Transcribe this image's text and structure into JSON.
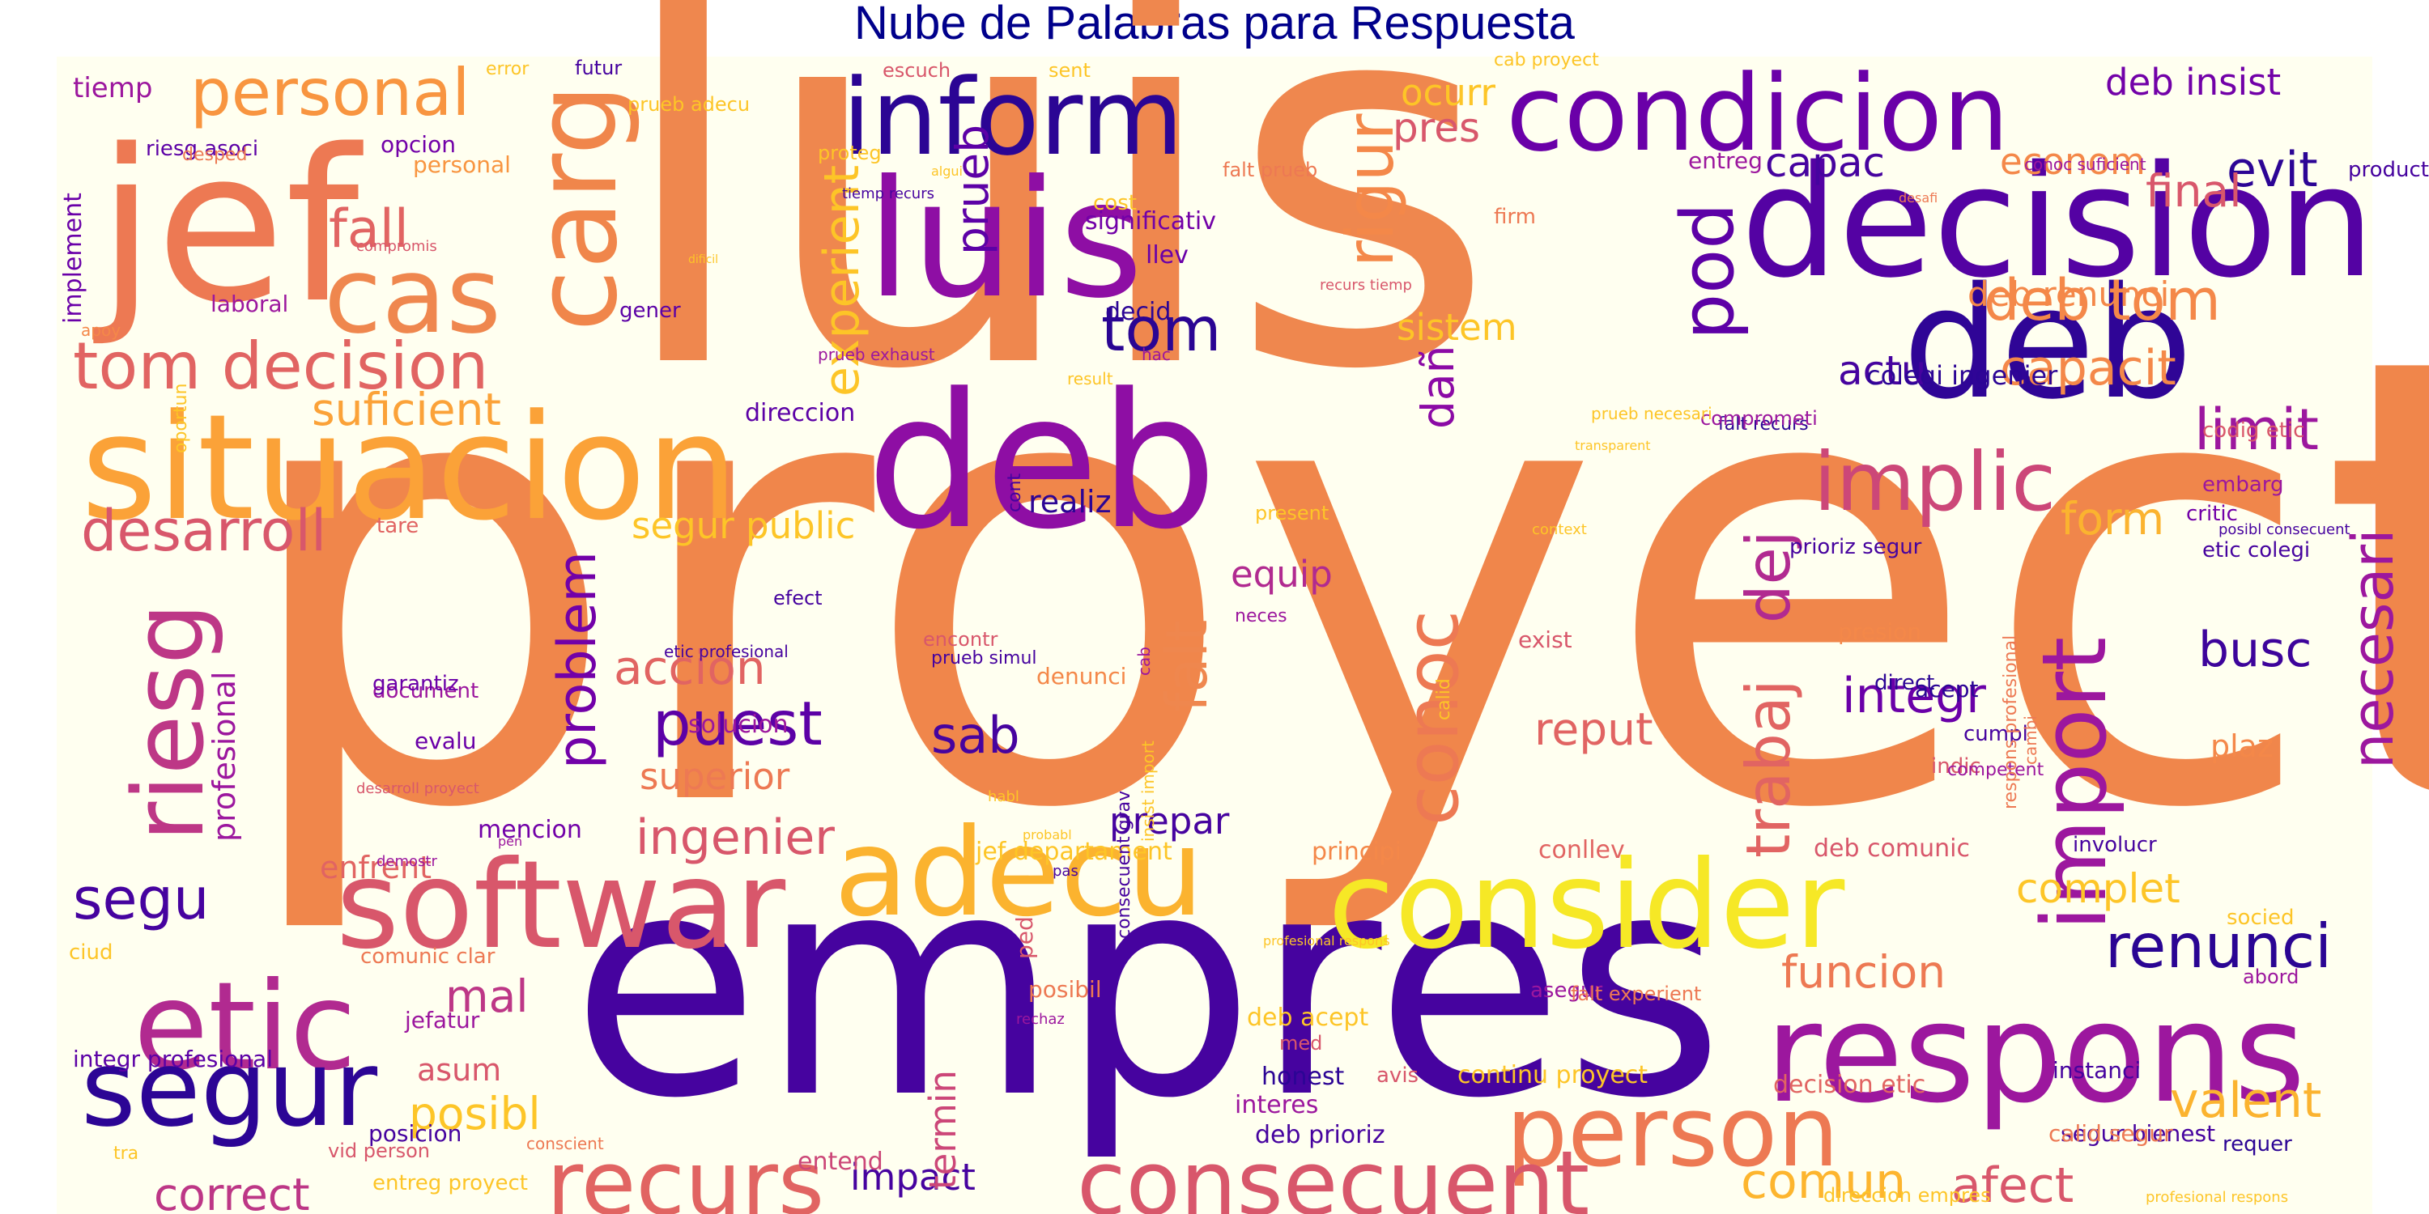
{
  "title": "Nube de Palabras para Respuesta",
  "background": "#fffff0",
  "palette": [
    "#0d0887",
    "#46039f",
    "#7201a8",
    "#9c179e",
    "#bd3786",
    "#d8576b",
    "#ed7953",
    "#fb9f3a",
    "#fdca26",
    "#f0f921"
  ],
  "words": [
    {
      "text": "proyect",
      "color": "#f0864b"
    },
    {
      "text": "luis",
      "color": "#ef874e"
    },
    {
      "text": "empres",
      "color": "#46039f"
    },
    {
      "text": "deb",
      "color": "#8e0ea4"
    },
    {
      "text": "luis",
      "color": "#8e0ea4"
    },
    {
      "text": "deb",
      "color": "#2f0596"
    },
    {
      "text": "decision",
      "color": "#5402a3"
    },
    {
      "text": "consider",
      "color": "#f6e826"
    },
    {
      "text": "respons",
      "color": "#9c179e"
    },
    {
      "text": "situacion",
      "color": "#fba238"
    },
    {
      "text": "jef",
      "color": "#ed7953"
    },
    {
      "text": "condicion",
      "color": "#6a00a8"
    },
    {
      "text": "inform",
      "color": "#2b0594"
    },
    {
      "text": "cas",
      "color": "#ef874e"
    },
    {
      "text": "carg",
      "color": "#f0864b"
    },
    {
      "text": "softwar",
      "color": "#d8576b"
    },
    {
      "text": "adecu",
      "color": "#fbb32f"
    },
    {
      "text": "etic",
      "color": "#b12a90"
    },
    {
      "text": "segur",
      "color": "#2c0595"
    },
    {
      "text": "person",
      "color": "#ed7953"
    },
    {
      "text": "consecuent",
      "color": "#d8576b"
    },
    {
      "text": "recurs",
      "color": "#e16462"
    },
    {
      "text": "implic",
      "color": "#cc4778"
    },
    {
      "text": "riesg",
      "color": "#bd3786"
    },
    {
      "text": "import",
      "color": "#9c179e"
    },
    {
      "text": "pod",
      "color": "#5d01a6"
    },
    {
      "text": "rigur",
      "color": "#f48849"
    },
    {
      "text": "tom decision",
      "color": "#e16462"
    },
    {
      "text": "desarroll",
      "color": "#d8576b"
    },
    {
      "text": "personal",
      "color": "#f89540"
    },
    {
      "text": "conoc",
      "color": "#ed7953"
    },
    {
      "text": "trabaj",
      "color": "#e16462"
    },
    {
      "text": "dej",
      "color": "#b12a90"
    },
    {
      "text": "problem",
      "color": "#7201a8"
    },
    {
      "text": "puest",
      "color": "#5c01a6"
    },
    {
      "text": "renunci",
      "color": "#2a0593"
    },
    {
      "text": "necesari",
      "color": "#9c179e"
    },
    {
      "text": "experient",
      "color": "#fdc527"
    },
    {
      "text": "tom",
      "color": "#2a0593"
    },
    {
      "text": "fall",
      "color": "#e16462"
    },
    {
      "text": "suficient",
      "color": "#fba238"
    },
    {
      "text": "falt",
      "color": "#ef874e"
    },
    {
      "text": "dañ",
      "color": "#8b0aa5"
    },
    {
      "text": "busc",
      "color": "#3d049b"
    },
    {
      "text": "segu",
      "color": "#46039f"
    },
    {
      "text": "limit",
      "color": "#9c179e"
    },
    {
      "text": "deb tom",
      "color": "#f48849"
    },
    {
      "text": "capacit",
      "color": "#f48849"
    },
    {
      "text": "evit",
      "color": "#2c0595"
    },
    {
      "text": "integr",
      "color": "#6a00a8"
    },
    {
      "text": "accion",
      "color": "#e16462"
    },
    {
      "text": "ingenier",
      "color": "#d8576b"
    },
    {
      "text": "sab",
      "color": "#46039f"
    },
    {
      "text": "comun",
      "color": "#fdb52e"
    },
    {
      "text": "afect",
      "color": "#d8576b"
    },
    {
      "text": "valent",
      "color": "#fbb32f"
    },
    {
      "text": "funcion",
      "color": "#ed7953"
    },
    {
      "text": "reput",
      "color": "#e16462"
    },
    {
      "text": "posibl",
      "color": "#fdc527"
    },
    {
      "text": "mal",
      "color": "#bd3786"
    },
    {
      "text": "correct",
      "color": "#bd3786"
    },
    {
      "text": "form",
      "color": "#fbb32f"
    },
    {
      "text": "actu",
      "color": "#46039f"
    },
    {
      "text": "complet",
      "color": "#fdc527"
    },
    {
      "text": "capac",
      "color": "#46039f"
    },
    {
      "text": "final",
      "color": "#d8576b"
    },
    {
      "text": "econom",
      "color": "#f48849"
    },
    {
      "text": "deb insist",
      "color": "#7201a8"
    },
    {
      "text": "pres",
      "color": "#d8576b"
    },
    {
      "text": "ocurr",
      "color": "#fdc527"
    },
    {
      "text": "prueb",
      "color": "#5c01a6"
    },
    {
      "text": "sistem",
      "color": "#fdc527"
    },
    {
      "text": "deb renunci",
      "color": "#f48849"
    },
    {
      "text": "equip",
      "color": "#b12a90"
    },
    {
      "text": "prepar",
      "color": "#46039f"
    },
    {
      "text": "impact",
      "color": "#46039f"
    },
    {
      "text": "termin",
      "color": "#cc4778"
    },
    {
      "text": "superior",
      "color": "#ed7953"
    },
    {
      "text": "segur public",
      "color": "#fdc527"
    },
    {
      "text": "realiz",
      "color": "#2c0595"
    },
    {
      "text": "enfrent",
      "color": "#e16462"
    },
    {
      "text": "asum",
      "color": "#d8576b"
    },
    {
      "text": "profesional",
      "color": "#9c179e"
    },
    {
      "text": "plaz",
      "color": "#f48849"
    },
    {
      "text": "colegi ingenier",
      "color": "#2c0595"
    },
    {
      "text": "posicion",
      "color": "#46039f"
    },
    {
      "text": "integr profesional",
      "color": "#5c01a6"
    },
    {
      "text": "implement",
      "color": "#6a00a8"
    },
    {
      "text": "tiemp",
      "color": "#9c179e"
    },
    {
      "text": "laboral",
      "color": "#9c179e"
    },
    {
      "text": "riesg asoci",
      "color": "#5c01a6"
    },
    {
      "text": "direccion",
      "color": "#5c01a6"
    },
    {
      "text": "mencion",
      "color": "#7201a8"
    },
    {
      "text": "jef departament",
      "color": "#fdc527"
    },
    {
      "text": "principi",
      "color": "#f48849"
    },
    {
      "text": "conllev",
      "color": "#e16462"
    },
    {
      "text": "deb comunic",
      "color": "#d8576b"
    },
    {
      "text": "decision etic",
      "color": "#e16462"
    },
    {
      "text": "continu proyect",
      "color": "#fdc527"
    },
    {
      "text": "deb acept",
      "color": "#fdc527"
    },
    {
      "text": "deb prioriz",
      "color": "#46039f"
    },
    {
      "text": "interes",
      "color": "#9c179e"
    },
    {
      "text": "entend",
      "color": "#cc4778"
    },
    {
      "text": "honest",
      "color": "#2c0595"
    },
    {
      "text": "segur bienest",
      "color": "#46039f"
    },
    {
      "text": "calid segur",
      "color": "#ed7953"
    },
    {
      "text": "jefatur",
      "color": "#9c179e"
    },
    {
      "text": "opcion",
      "color": "#7201a8"
    },
    {
      "text": "personal",
      "color": "#f89540"
    },
    {
      "text": "significativ",
      "color": "#7201a8"
    },
    {
      "text": "llev",
      "color": "#6a00a8"
    },
    {
      "text": "decid",
      "color": "#2c0595"
    },
    {
      "text": "gener",
      "color": "#5c01a6"
    },
    {
      "text": "evalu",
      "color": "#6a00a8"
    },
    {
      "text": "cost",
      "color": "#fdc527"
    },
    {
      "text": "firm",
      "color": "#ed7953"
    },
    {
      "text": "entreg",
      "color": "#9c179e"
    },
    {
      "text": "product",
      "color": "#46039f"
    },
    {
      "text": "codig etic",
      "color": "#d8576b"
    },
    {
      "text": "embarg",
      "color": "#9c179e"
    },
    {
      "text": "critic",
      "color": "#7201a8"
    },
    {
      "text": "etic colegi",
      "color": "#46039f"
    },
    {
      "text": "prioriz segur",
      "color": "#46039f"
    },
    {
      "text": "falt recurs",
      "color": "#2c0595"
    },
    {
      "text": "comprometi",
      "color": "#9c179e"
    },
    {
      "text": "acept",
      "color": "#2c0595"
    },
    {
      "text": "direct",
      "color": "#2c0595"
    },
    {
      "text": "cumpl",
      "color": "#46039f"
    },
    {
      "text": "indic",
      "color": "#d8576b"
    },
    {
      "text": "competent",
      "color": "#9c179e"
    },
    {
      "text": "presion",
      "color": "#f48849"
    },
    {
      "text": "exist",
      "color": "#d8576b"
    },
    {
      "text": "solucion",
      "color": "#9c179e"
    },
    {
      "text": "denunci",
      "color": "#f48849"
    },
    {
      "text": "prueb simul",
      "color": "#46039f"
    },
    {
      "text": "encontr",
      "color": "#d8576b"
    },
    {
      "text": "efect",
      "color": "#46039f"
    },
    {
      "text": "neces",
      "color": "#9c179e"
    },
    {
      "text": "document",
      "color": "#9c179e"
    },
    {
      "text": "garantiz",
      "color": "#6a00a8"
    },
    {
      "text": "tare",
      "color": "#e16462"
    },
    {
      "text": "present",
      "color": "#fdc527"
    },
    {
      "text": "result",
      "color": "#fdc527"
    },
    {
      "text": "hac",
      "color": "#9c179e"
    },
    {
      "text": "escuch",
      "color": "#d8576b"
    },
    {
      "text": "sent",
      "color": "#fdc527"
    },
    {
      "text": "cab proyect",
      "color": "#fdc527"
    },
    {
      "text": "conoc suficient",
      "color": "#9c179e"
    },
    {
      "text": "desafi",
      "color": "#ed7953"
    },
    {
      "text": "falt prueb",
      "color": "#ed7953"
    },
    {
      "text": "proteg",
      "color": "#fdc527"
    },
    {
      "text": "algui",
      "color": "#fdc527"
    },
    {
      "text": "prueb adecu",
      "color": "#fdc527"
    },
    {
      "text": "futur",
      "color": "#46039f"
    },
    {
      "text": "error",
      "color": "#fdc527"
    },
    {
      "text": "desped",
      "color": "#ed7953"
    },
    {
      "text": "apoy",
      "color": "#f48849"
    },
    {
      "text": "compromis",
      "color": "#d8576b"
    },
    {
      "text": "dificil",
      "color": "#fdc527"
    },
    {
      "text": "prueb exhaust",
      "color": "#9c179e"
    },
    {
      "text": "tiemp recurs",
      "color": "#46039f"
    },
    {
      "text": "recurs tiemp",
      "color": "#d8576b"
    },
    {
      "text": "prueb necesari",
      "color": "#fdc527"
    },
    {
      "text": "transparent",
      "color": "#fdc527"
    },
    {
      "text": "context",
      "color": "#fdc527"
    },
    {
      "text": "cont",
      "color": "#46039f"
    },
    {
      "text": "calid",
      "color": "#fdc527"
    },
    {
      "text": "probabl",
      "color": "#fdc527"
    },
    {
      "text": "etic profesional",
      "color": "#46039f"
    },
    {
      "text": "habl",
      "color": "#fdc527"
    },
    {
      "text": "pas",
      "color": "#46039f"
    },
    {
      "text": "pen",
      "color": "#9c179e"
    },
    {
      "text": "demostr",
      "color": "#9c179e"
    },
    {
      "text": "oportun",
      "color": "#fdc527"
    },
    {
      "text": "desarroll proyect",
      "color": "#d8576b"
    },
    {
      "text": "profesional respons",
      "color": "#fdc527"
    },
    {
      "text": "ciud",
      "color": "#fdc527"
    },
    {
      "text": "comunic clar",
      "color": "#ed7953"
    },
    {
      "text": "cab",
      "color": "#9c179e"
    },
    {
      "text": "insist import",
      "color": "#fdc527"
    },
    {
      "text": "consecuent grav",
      "color": "#46039f"
    },
    {
      "text": "rechaz",
      "color": "#9c179e"
    },
    {
      "text": "ped",
      "color": "#d8576b"
    },
    {
      "text": "posibil",
      "color": "#ed7953"
    },
    {
      "text": "avis",
      "color": "#d8576b"
    },
    {
      "text": "med",
      "color": "#d8576b"
    },
    {
      "text": "asegur",
      "color": "#9c179e"
    },
    {
      "text": "falt experient",
      "color": "#ed7953"
    },
    {
      "text": "respons profesional",
      "color": "#ed7953"
    },
    {
      "text": "cambi",
      "color": "#ed7953"
    },
    {
      "text": "posibl consecuent",
      "color": "#46039f"
    },
    {
      "text": "involucr",
      "color": "#46039f"
    },
    {
      "text": "abord",
      "color": "#9c179e"
    },
    {
      "text": "socied",
      "color": "#fdc527"
    },
    {
      "text": "requer",
      "color": "#2c0595"
    },
    {
      "text": "instanci",
      "color": "#46039f"
    },
    {
      "text": "tra",
      "color": "#fdc527"
    },
    {
      "text": "vid person",
      "color": "#d8576b"
    },
    {
      "text": "entreg proyect",
      "color": "#fdc527"
    },
    {
      "text": "conscient",
      "color": "#ed7953"
    },
    {
      "text": "direccion empres",
      "color": "#fdc527"
    },
    {
      "text": "profesional respons",
      "color": "#fdc527"
    }
  ]
}
